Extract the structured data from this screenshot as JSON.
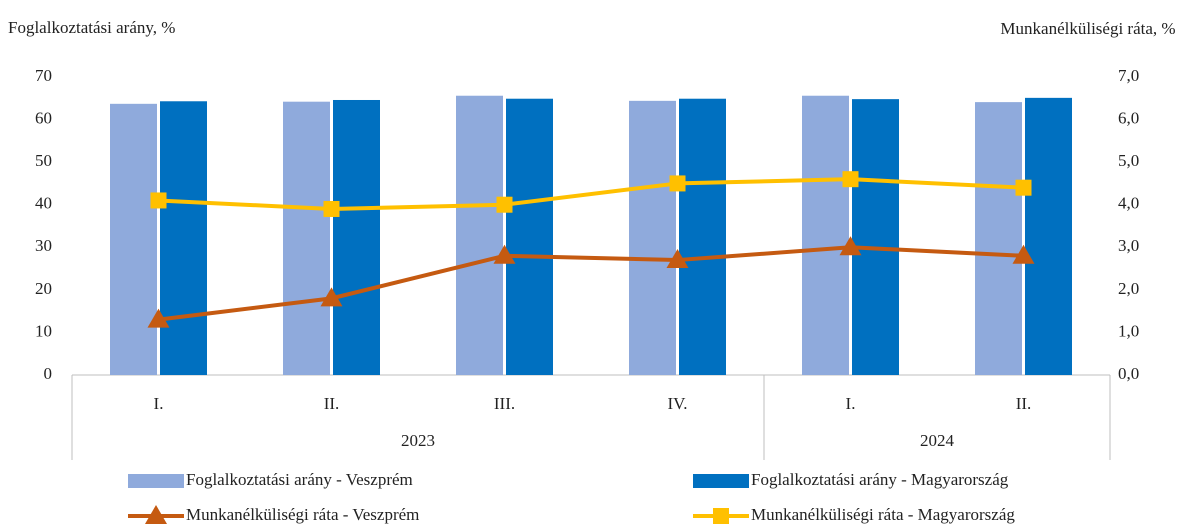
{
  "chart_data": {
    "type": "bar-line",
    "ylabel": "Foglalkoztatási arány, %",
    "y2label": "Munkanélküliségi ráta, %",
    "categories": [
      "I.",
      "II.",
      "III.",
      "IV.",
      "I.",
      "II."
    ],
    "groups": [
      {
        "name": "2023",
        "count": 4
      },
      {
        "name": "2024",
        "count": 2
      }
    ],
    "ylim": [
      0,
      70
    ],
    "yticks": [
      0,
      10,
      20,
      30,
      40,
      50,
      60,
      70
    ],
    "y2lim": [
      0,
      7
    ],
    "y2ticks": [
      {
        "value": 0,
        "label": "0,0"
      },
      {
        "value": 1,
        "label": "1,0"
      },
      {
        "value": 2,
        "label": "2,0"
      },
      {
        "value": 3,
        "label": "3,0"
      },
      {
        "value": 4,
        "label": "4,0"
      },
      {
        "value": 5,
        "label": "5,0"
      },
      {
        "value": 6,
        "label": "6,0"
      },
      {
        "value": 7,
        "label": "7,0"
      }
    ],
    "grid": false,
    "series": [
      {
        "name": "Foglalkoztatási arány - Veszprém",
        "type": "bar",
        "color": "#8faadc",
        "values": [
          63.7,
          64.2,
          65.6,
          64.4,
          65.6,
          64.1
        ]
      },
      {
        "name": "Foglalkoztatási arány - Magyarország",
        "type": "bar",
        "color": "#0070c0",
        "values": [
          64.3,
          64.6,
          64.9,
          64.9,
          64.8,
          65.1
        ]
      },
      {
        "name": "Munkanélküliségi ráta - Veszprém",
        "type": "line",
        "marker": "triangle",
        "axis": "y2",
        "color": "#c55a11",
        "values": [
          1.3,
          1.8,
          2.8,
          2.7,
          3.0,
          2.8
        ]
      },
      {
        "name": "Munkanélküliségi ráta - Magyarország",
        "type": "line",
        "marker": "square",
        "axis": "y2",
        "color": "#ffc000",
        "values": [
          4.1,
          3.9,
          4.0,
          4.5,
          4.6,
          4.4
        ]
      }
    ]
  }
}
